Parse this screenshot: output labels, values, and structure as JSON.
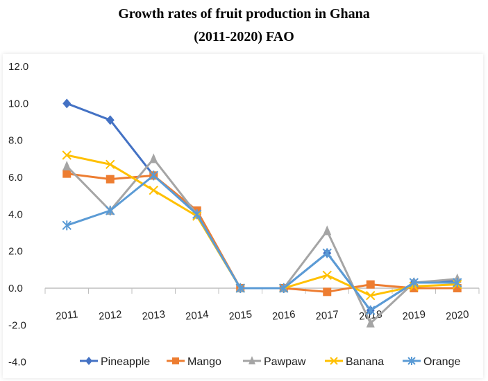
{
  "chart_data": {
    "type": "line",
    "title": "Growth rates of  fruit production in Ghana",
    "subtitle": "(2011-2020) FAO",
    "xlabel": "",
    "ylabel": "",
    "categories": [
      "2011",
      "2012",
      "2013",
      "2014",
      "2015",
      "2016",
      "2017",
      "2018",
      "2019",
      "2020"
    ],
    "ylim": [
      -4,
      12
    ],
    "yticks": [
      "12.0",
      "10.0",
      "8.0",
      "6.0",
      "4.0",
      "2.0",
      "0.0",
      "-2.0",
      "-4.0"
    ],
    "grid": false,
    "legend_position": "bottom",
    "series": [
      {
        "name": "Pineapple",
        "color": "#4472C4",
        "marker": "diamond",
        "values": [
          10.0,
          9.1,
          6.1,
          4.1,
          0.0,
          0.0,
          1.9,
          -1.2,
          0.3,
          0.4
        ]
      },
      {
        "name": "Mango",
        "color": "#ED7D31",
        "marker": "square",
        "values": [
          6.2,
          5.9,
          6.1,
          4.2,
          0.0,
          0.0,
          -0.2,
          0.2,
          0.0,
          0.0
        ]
      },
      {
        "name": "Pawpaw",
        "color": "#A5A5A5",
        "marker": "triangle",
        "values": [
          6.6,
          4.2,
          7.0,
          4.0,
          0.0,
          0.0,
          3.1,
          -1.9,
          0.3,
          0.5
        ]
      },
      {
        "name": "Banana",
        "color": "#FFC000",
        "marker": "x",
        "values": [
          7.2,
          6.7,
          5.3,
          3.9,
          0.0,
          0.0,
          0.7,
          -0.4,
          0.1,
          0.2
        ]
      },
      {
        "name": "Orange",
        "color": "#5B9BD5",
        "marker": "asterisk",
        "values": [
          3.4,
          4.2,
          6.1,
          4.0,
          0.0,
          0.0,
          1.9,
          -1.2,
          0.3,
          0.3
        ]
      }
    ]
  }
}
